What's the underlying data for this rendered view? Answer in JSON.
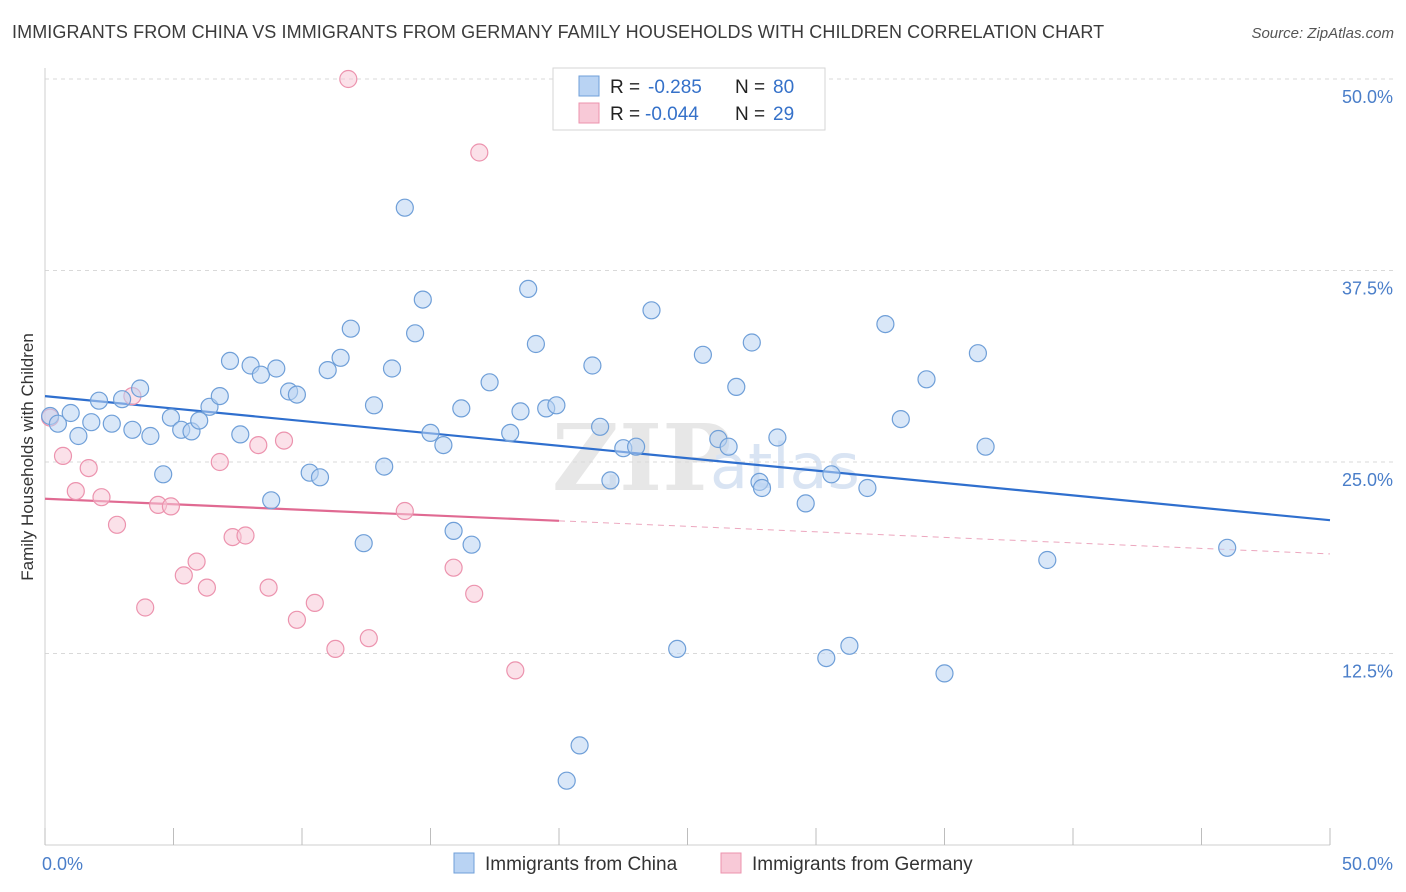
{
  "title": "IMMIGRANTS FROM CHINA VS IMMIGRANTS FROM GERMANY FAMILY HOUSEHOLDS WITH CHILDREN CORRELATION CHART",
  "source": "Source: ZipAtlas.com",
  "watermark": {
    "zip": "ZIP",
    "atlas": "atlas"
  },
  "colors": {
    "china_fill": "#b9d3f3",
    "china_stroke": "#6f9fd8",
    "china_line": "#2f6fce",
    "germany_fill": "#f8c9d7",
    "germany_stroke": "#ec93ae",
    "germany_line": "#e06a92",
    "grid": "#d9d9d9",
    "tick_label": "#4a7ec9"
  },
  "legend": {
    "rows": [
      {
        "r_label": "R =",
        "r_value": "-0.285",
        "n_label": "N =",
        "n_value": "80"
      },
      {
        "r_label": "R =",
        "r_value": "-0.044",
        "n_label": "N =",
        "n_value": "29"
      }
    ]
  },
  "chart_data": {
    "type": "scatter",
    "title": "IMMIGRANTS FROM CHINA VS IMMIGRANTS FROM GERMANY FAMILY HOUSEHOLDS WITH CHILDREN CORRELATION CHART",
    "xlabel": "",
    "ylabel": "Family Households with Children",
    "xlim": [
      0,
      50
    ],
    "ylim": [
      0,
      50
    ],
    "x_tick_labels": [
      {
        "value": 0,
        "label": "0.0%"
      },
      {
        "value": 50,
        "label": "50.0%"
      }
    ],
    "y_tick_labels": [
      {
        "value": 50,
        "label": "50.0%"
      },
      {
        "value": 37.5,
        "label": "37.5%"
      },
      {
        "value": 25,
        "label": "25.0%"
      },
      {
        "value": 12.5,
        "label": "12.5%"
      }
    ],
    "grid": true,
    "legend_position": "top-center",
    "series": [
      {
        "name": "Immigrants from China",
        "r": -0.285,
        "n": 80,
        "trend": {
          "x0": 0,
          "y0": 29.3,
          "x1": 50,
          "y1": 21.2,
          "solid_until": 50
        },
        "points": [
          [
            0.2,
            28.0
          ],
          [
            0.5,
            27.5
          ],
          [
            1.0,
            28.2
          ],
          [
            1.3,
            26.7
          ],
          [
            1.8,
            27.6
          ],
          [
            2.1,
            29.0
          ],
          [
            2.6,
            27.5
          ],
          [
            3.0,
            29.1
          ],
          [
            3.4,
            27.1
          ],
          [
            3.7,
            29.8
          ],
          [
            4.1,
            26.7
          ],
          [
            4.6,
            24.2
          ],
          [
            4.9,
            27.9
          ],
          [
            5.3,
            27.1
          ],
          [
            5.7,
            27.0
          ],
          [
            6.0,
            27.7
          ],
          [
            6.4,
            28.6
          ],
          [
            6.8,
            29.3
          ],
          [
            7.2,
            31.6
          ],
          [
            7.6,
            26.8
          ],
          [
            8.0,
            31.3
          ],
          [
            8.4,
            30.7
          ],
          [
            8.8,
            22.5
          ],
          [
            9.0,
            31.1
          ],
          [
            9.5,
            29.6
          ],
          [
            9.8,
            29.4
          ],
          [
            10.3,
            24.3
          ],
          [
            10.7,
            24.0
          ],
          [
            11.0,
            31.0
          ],
          [
            11.5,
            31.8
          ],
          [
            11.9,
            33.7
          ],
          [
            12.4,
            19.7
          ],
          [
            12.8,
            28.7
          ],
          [
            13.2,
            24.7
          ],
          [
            13.5,
            31.1
          ],
          [
            14.0,
            41.6
          ],
          [
            14.4,
            33.4
          ],
          [
            14.7,
            35.6
          ],
          [
            15.0,
            26.9
          ],
          [
            15.5,
            26.1
          ],
          [
            15.9,
            20.5
          ],
          [
            16.2,
            28.5
          ],
          [
            16.6,
            19.6
          ],
          [
            17.3,
            30.2
          ],
          [
            18.1,
            26.9
          ],
          [
            18.5,
            28.3
          ],
          [
            18.8,
            36.3
          ],
          [
            19.1,
            32.7
          ],
          [
            19.5,
            28.5
          ],
          [
            19.9,
            28.7
          ],
          [
            20.3,
            4.2
          ],
          [
            20.8,
            6.5
          ],
          [
            21.3,
            31.3
          ],
          [
            21.6,
            27.3
          ],
          [
            22.0,
            23.8
          ],
          [
            22.5,
            25.9
          ],
          [
            23.0,
            26.0
          ],
          [
            23.6,
            34.9
          ],
          [
            24.6,
            12.8
          ],
          [
            25.6,
            32.0
          ],
          [
            26.2,
            26.5
          ],
          [
            26.6,
            26.0
          ],
          [
            26.9,
            29.9
          ],
          [
            27.5,
            32.8
          ],
          [
            27.8,
            23.7
          ],
          [
            27.9,
            23.3
          ],
          [
            28.5,
            26.6
          ],
          [
            29.6,
            22.3
          ],
          [
            30.4,
            12.2
          ],
          [
            30.6,
            24.2
          ],
          [
            31.3,
            13.0
          ],
          [
            32.0,
            23.3
          ],
          [
            32.7,
            34.0
          ],
          [
            33.3,
            27.8
          ],
          [
            34.3,
            30.4
          ],
          [
            35.0,
            11.2
          ],
          [
            36.3,
            32.1
          ],
          [
            36.6,
            26.0
          ],
          [
            39.0,
            18.6
          ],
          [
            46.0,
            19.4
          ]
        ]
      },
      {
        "name": "Immigrants from Germany",
        "r": -0.044,
        "n": 29,
        "trend": {
          "x0": 0,
          "y0": 22.6,
          "x1": 50,
          "y1": 19.0,
          "solid_until": 20
        },
        "points": [
          [
            0.2,
            27.9
          ],
          [
            0.7,
            25.4
          ],
          [
            1.2,
            23.1
          ],
          [
            1.7,
            24.6
          ],
          [
            2.2,
            22.7
          ],
          [
            2.8,
            20.9
          ],
          [
            3.4,
            29.3
          ],
          [
            3.9,
            15.5
          ],
          [
            4.4,
            22.2
          ],
          [
            4.9,
            22.1
          ],
          [
            5.4,
            17.6
          ],
          [
            5.9,
            18.5
          ],
          [
            6.3,
            16.8
          ],
          [
            6.8,
            25.0
          ],
          [
            7.3,
            20.1
          ],
          [
            7.8,
            20.2
          ],
          [
            8.3,
            26.1
          ],
          [
            8.7,
            16.8
          ],
          [
            9.3,
            26.4
          ],
          [
            9.8,
            14.7
          ],
          [
            10.5,
            15.8
          ],
          [
            11.3,
            12.8
          ],
          [
            11.8,
            50.0
          ],
          [
            12.6,
            13.5
          ],
          [
            14.0,
            21.8
          ],
          [
            15.9,
            18.1
          ],
          [
            16.7,
            16.4
          ],
          [
            16.9,
            45.2
          ],
          [
            18.3,
            11.4
          ]
        ]
      }
    ]
  },
  "bottom_legend": {
    "china_label": "Immigrants from China",
    "germany_label": "Immigrants from Germany"
  }
}
